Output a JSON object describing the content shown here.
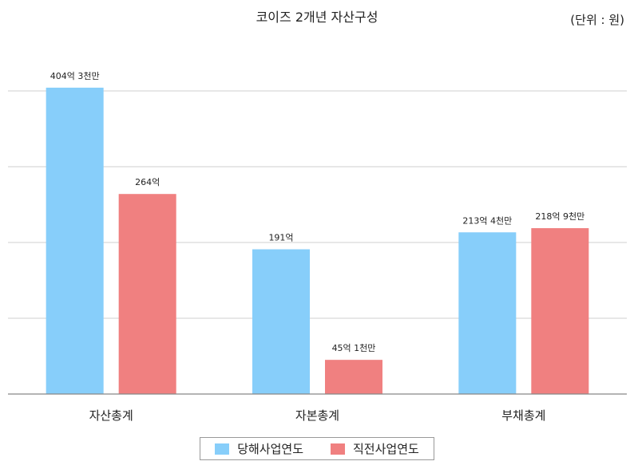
{
  "title": "코이즈 2개년 자산구성",
  "unit": "(단위 : 원)",
  "chart_data": {
    "type": "bar",
    "title": "코이즈 2개년 자산구성",
    "categories": [
      "자산총계",
      "자본총계",
      "부채총계"
    ],
    "series": [
      {
        "name": "당해사업연도",
        "color": "#87CEFA",
        "values": [
          40430000000,
          19100000000,
          21340000000
        ],
        "labels": [
          "404억 3천만",
          "191억",
          "213억 4천만"
        ]
      },
      {
        "name": "직전사업연도",
        "color": "#F08080",
        "values": [
          26400000000,
          4510000000,
          21890000000
        ],
        "labels": [
          "264억",
          "45억 1천만",
          "218억 9천만"
        ]
      }
    ],
    "ylim": [
      0,
      50000000000
    ],
    "grid": true,
    "legend_position": "bottom"
  }
}
